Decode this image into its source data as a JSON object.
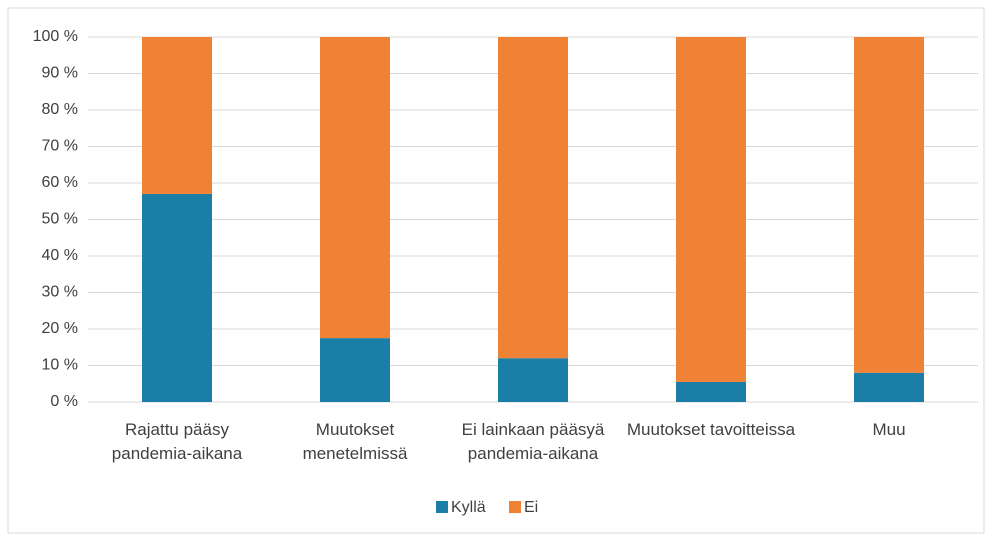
{
  "chart_data": {
    "type": "stacked_bar",
    "categories": [
      "Rajattu pääsy pandemia-aikana",
      "Muutokset menetelmissä",
      "Ei lainkaan pääsyä pandemia-aikana",
      "Muutokset tavoitteissa",
      "Muu"
    ],
    "series": [
      {
        "name": "Kyllä",
        "color": "#1a7ea6",
        "values": [
          57,
          17.5,
          12,
          5.5,
          8
        ]
      },
      {
        "name": "Ei",
        "color": "#ef8234",
        "values": [
          43,
          82.5,
          88,
          94.5,
          92
        ]
      }
    ],
    "ylim": [
      0,
      100
    ],
    "yticks": [
      {
        "value": 0,
        "label": "0 %"
      },
      {
        "value": 10,
        "label": "10 %"
      },
      {
        "value": 20,
        "label": "20 %"
      },
      {
        "value": 30,
        "label": "30 %"
      },
      {
        "value": 40,
        "label": "40 %"
      },
      {
        "value": 50,
        "label": "50 %"
      },
      {
        "value": 60,
        "label": "60 %"
      },
      {
        "value": 70,
        "label": "70 %"
      },
      {
        "value": 80,
        "label": "80 %"
      },
      {
        "value": 90,
        "label": "90 %"
      },
      {
        "value": 100,
        "label": "100 %"
      }
    ],
    "grid": true,
    "legend": "bottom"
  }
}
